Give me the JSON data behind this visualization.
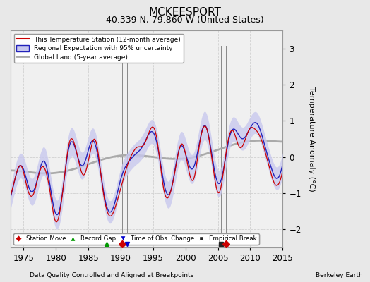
{
  "title": "MCKEESPORT",
  "subtitle": "40.339 N, 79.860 W (United States)",
  "xlabel_bottom": "Data Quality Controlled and Aligned at Breakpoints",
  "xlabel_right": "Berkeley Earth",
  "ylabel": "Temperature Anomaly (°C)",
  "xlim": [
    1973,
    2015
  ],
  "ylim": [
    -2.5,
    3.5
  ],
  "yticks": [
    -2,
    -1,
    0,
    1,
    2,
    3
  ],
  "xticks": [
    1975,
    1980,
    1985,
    1990,
    1995,
    2000,
    2005,
    2010,
    2015
  ],
  "bg_color": "#e8e8e8",
  "plot_bg_color": "#f0f0f0",
  "grid_color": "#d0d0d0",
  "station_color": "#cc0000",
  "regional_color": "#2222bb",
  "regional_fill_color": "#c8c8ee",
  "global_color": "#aaaaaa",
  "legend_entries": [
    "This Temperature Station (12-month average)",
    "Regional Expectation with 95% uncertainty",
    "Global Land (5-year average)"
  ],
  "markers": {
    "station_move": {
      "years": [
        1990.2
      ],
      "color": "#cc0000",
      "marker": "D",
      "label": "Station Move"
    },
    "record_gap": {
      "years": [
        1987.8
      ],
      "color": "#009900",
      "marker": "^",
      "label": "Record Gap"
    },
    "time_obs_change": {
      "years": [
        1991.0
      ],
      "color": "#0000cc",
      "marker": "v",
      "label": "Time of Obs. Change"
    },
    "empirical_break": {
      "years": [
        2005.5
      ],
      "color": "#222222",
      "marker": "s",
      "label": "Empirical Break"
    },
    "station_move2": {
      "years": [
        2006.2
      ],
      "color": "#cc0000",
      "marker": "D",
      "label": ""
    }
  },
  "title_fontsize": 11,
  "subtitle_fontsize": 9,
  "label_fontsize": 8,
  "tick_fontsize": 8.5
}
